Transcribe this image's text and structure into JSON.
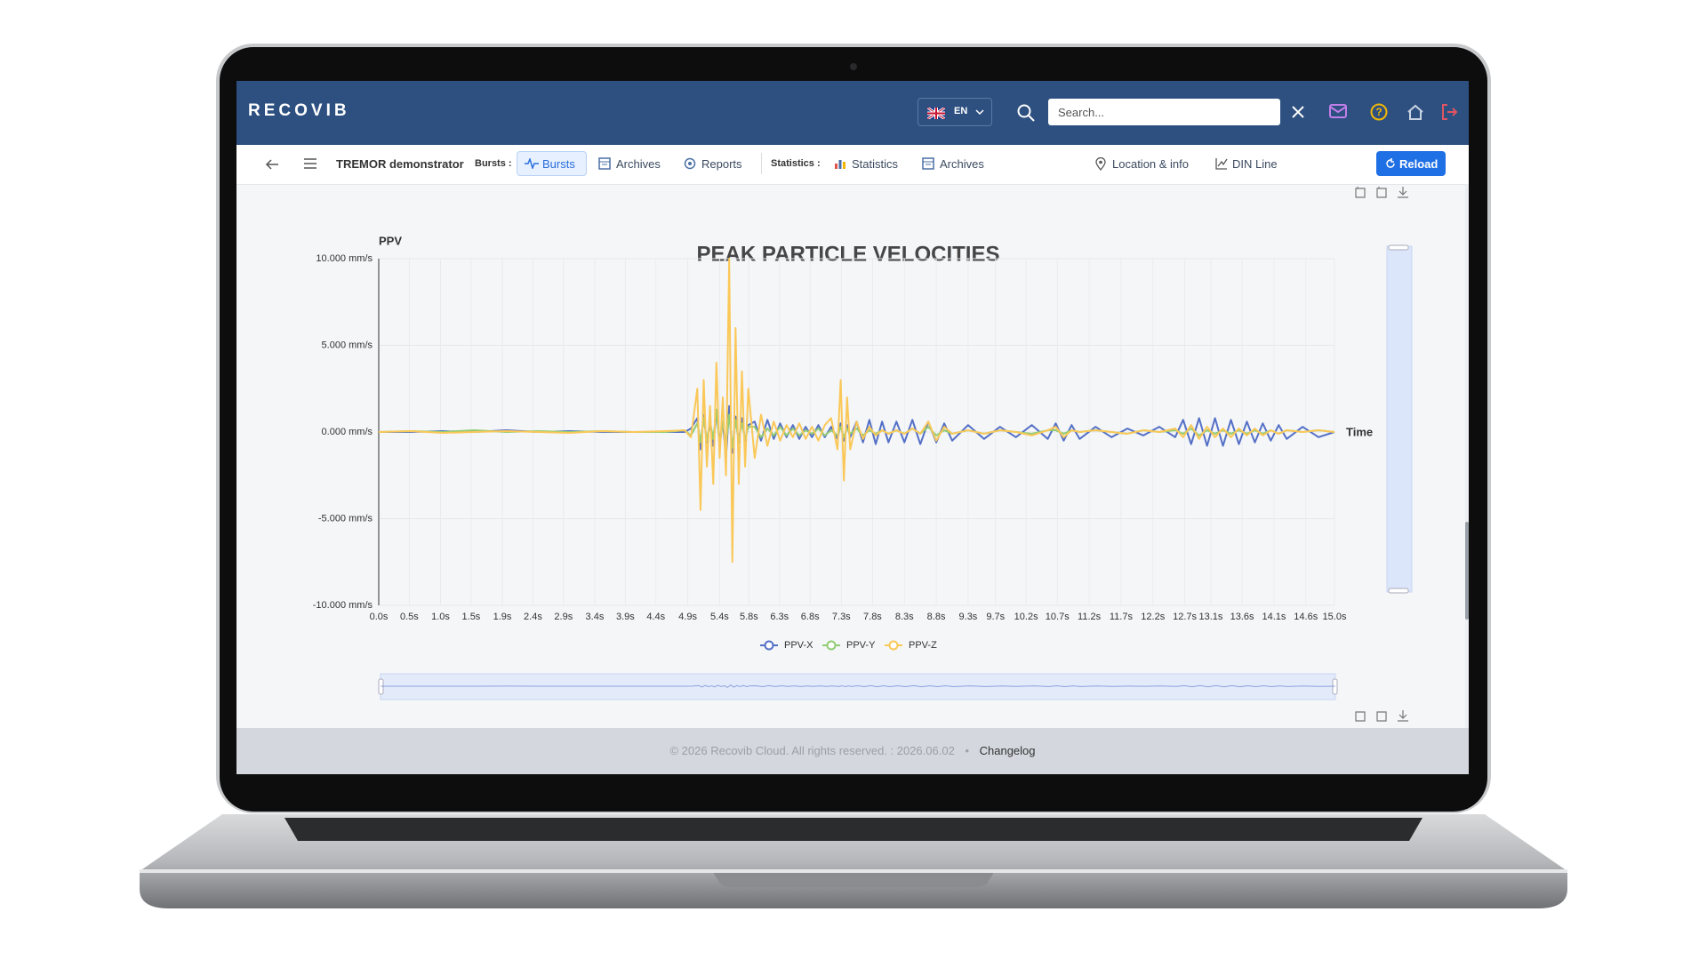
{
  "ui": {
    "logo": "RECOVIB",
    "language": "EN",
    "search_placeholder": "Search...",
    "nav": {
      "project": "TREMOR demonstrator",
      "bursts_label": "Bursts :",
      "bursts": "Bursts",
      "archives": "Archives",
      "reports": "Reports",
      "statistics_label": "Statistics :",
      "statistics": "Statistics",
      "archives_2": "Archives",
      "location": "Location & info",
      "din_line": "DIN Line",
      "reload": "Reload"
    },
    "footer": {
      "copyright": "© 2026 Recovib Cloud. All rights reserved. : 2026.06.02",
      "separator": "•",
      "changelog": "Changelog"
    }
  },
  "chart_data": {
    "type": "line",
    "title": "PEAK PARTICLE VELOCITIES",
    "y_label": "PPV",
    "x_label": "Time",
    "x": [
      0,
      0.5,
      1,
      1.5,
      2,
      2.5,
      3,
      3.5,
      4,
      4.5,
      4.8,
      4.9,
      5.0,
      5.05,
      5.1,
      5.15,
      5.2,
      5.25,
      5.3,
      5.35,
      5.4,
      5.45,
      5.5,
      5.55,
      5.6,
      5.65,
      5.7,
      5.75,
      5.8,
      5.9,
      6.0,
      6.1,
      6.2,
      6.3,
      6.4,
      6.5,
      6.6,
      6.7,
      6.8,
      6.9,
      7.0,
      7.1,
      7.2,
      7.25,
      7.3,
      7.35,
      7.4,
      7.5,
      7.6,
      7.7,
      7.8,
      7.9,
      8.0,
      8.125,
      8.25,
      8.375,
      8.5,
      8.625,
      8.75,
      8.875,
      9.0,
      9.25,
      9.5,
      9.75,
      10,
      10.25,
      10.5,
      10.625,
      10.75,
      10.875,
      11,
      11.25,
      11.5,
      11.75,
      12,
      12.25,
      12.5,
      12.625,
      12.75,
      12.875,
      13,
      13.125,
      13.25,
      13.375,
      13.5,
      13.625,
      13.75,
      13.875,
      14,
      14.125,
      14.25,
      14.5,
      14.75,
      15
    ],
    "xlim": [
      0,
      15
    ],
    "xticks": [
      {
        "value": 0,
        "label": "0.0s"
      },
      {
        "value": 0.48,
        "label": "0.5s"
      },
      {
        "value": 0.97,
        "label": "1.0s"
      },
      {
        "value": 1.45,
        "label": "1.5s"
      },
      {
        "value": 1.94,
        "label": "1.9s"
      },
      {
        "value": 2.42,
        "label": "2.4s"
      },
      {
        "value": 2.9,
        "label": "2.9s"
      },
      {
        "value": 3.39,
        "label": "3.4s"
      },
      {
        "value": 3.87,
        "label": "3.9s"
      },
      {
        "value": 4.35,
        "label": "4.4s"
      },
      {
        "value": 4.85,
        "label": "4.9s"
      },
      {
        "value": 5.35,
        "label": "5.4s"
      },
      {
        "value": 5.81,
        "label": "5.8s"
      },
      {
        "value": 6.29,
        "label": "6.3s"
      },
      {
        "value": 6.77,
        "label": "6.8s"
      },
      {
        "value": 7.26,
        "label": "7.3s"
      },
      {
        "value": 7.75,
        "label": "7.8s"
      },
      {
        "value": 8.25,
        "label": "8.3s"
      },
      {
        "value": 8.75,
        "label": "8.8s"
      },
      {
        "value": 9.25,
        "label": "9.3s"
      },
      {
        "value": 9.68,
        "label": "9.7s"
      },
      {
        "value": 10.16,
        "label": "10.2s"
      },
      {
        "value": 10.65,
        "label": "10.7s"
      },
      {
        "value": 11.15,
        "label": "11.2s"
      },
      {
        "value": 11.65,
        "label": "11.7s"
      },
      {
        "value": 12.15,
        "label": "12.2s"
      },
      {
        "value": 12.65,
        "label": "12.7s"
      },
      {
        "value": 13.06,
        "label": "13.1s"
      },
      {
        "value": 13.55,
        "label": "13.6s"
      },
      {
        "value": 14.05,
        "label": "14.1s"
      },
      {
        "value": 14.55,
        "label": "14.6s"
      },
      {
        "value": 15,
        "label": "15.0s"
      }
    ],
    "ylim": [
      -10,
      10
    ],
    "yticks": [
      {
        "value": -10,
        "label": "-10.000 mm/s"
      },
      {
        "value": -5,
        "label": "-5.000 mm/s"
      },
      {
        "value": 0,
        "label": "0.000 mm/s"
      },
      {
        "value": 5,
        "label": "5.000 mm/s"
      },
      {
        "value": 10,
        "label": "10.000 mm/s"
      }
    ],
    "grid": true,
    "legend": "bottom",
    "series": [
      {
        "name": "PPV-X",
        "color": "#5470c6",
        "values": [
          0,
          0,
          0.05,
          0,
          0.1,
          0,
          0.05,
          0,
          0,
          0,
          0,
          0.2,
          0.8,
          -1,
          1,
          -0.6,
          0.5,
          -0.8,
          1.2,
          -0.5,
          0.6,
          -1.5,
          1.5,
          -1.2,
          0.9,
          -0.6,
          0.8,
          -0.5,
          0.4,
          0.6,
          -0.5,
          0.7,
          -0.4,
          0.5,
          -0.3,
          0.4,
          -0.4,
          0.3,
          -0.3,
          0.4,
          -0.3,
          0.3,
          -0.4,
          0.5,
          -0.5,
          0.4,
          -0.3,
          0.6,
          -0.6,
          0.7,
          -0.7,
          0.6,
          -0.6,
          0.6,
          -0.6,
          0.7,
          -0.7,
          0.6,
          -0.6,
          0.5,
          -0.5,
          0.4,
          -0.4,
          0.3,
          -0.3,
          0.4,
          -0.4,
          0.5,
          -0.5,
          0.4,
          -0.4,
          0.3,
          -0.3,
          0.2,
          -0.2,
          0.3,
          -0.3,
          0.7,
          -0.7,
          0.8,
          -0.8,
          0.8,
          -0.8,
          0.7,
          -0.7,
          0.6,
          -0.6,
          0.5,
          -0.5,
          0.4,
          -0.4,
          0.3,
          -0.3,
          0
        ]
      },
      {
        "name": "PPV-Y",
        "color": "#91cc75",
        "values": [
          0,
          0.05,
          0,
          0.1,
          0,
          0.05,
          0,
          0.05,
          0,
          0,
          0.1,
          -0.2,
          0.5,
          -0.6,
          0.8,
          -0.5,
          0.6,
          -0.4,
          1.3,
          -0.8,
          0.6,
          -0.7,
          1,
          -0.9,
          0.7,
          -0.5,
          0.5,
          -0.4,
          0.3,
          0.3,
          -0.3,
          0.2,
          -0.2,
          0.3,
          -0.2,
          0.2,
          -0.2,
          0.1,
          -0.1,
          0.2,
          -0.2,
          0.1,
          -0.2,
          0.3,
          -0.3,
          0.2,
          -0.1,
          0.2,
          -0.2,
          0.1,
          -0.1,
          0.1,
          -0.1,
          0.1,
          -0.1,
          0.2,
          -0.1,
          0.3,
          -0.2,
          0.1,
          -0.1,
          0.1,
          -0.1,
          0.1,
          0,
          -0.1,
          0.1,
          0.1,
          -0.1,
          0.1,
          0,
          0.1,
          0,
          -0.1,
          0.1,
          0,
          0.1,
          -0.1,
          0.2,
          -0.2,
          0.1,
          -0.1,
          0.1,
          -0.1,
          0.1,
          -0.1,
          0.1,
          -0.1,
          0.1,
          -0.1,
          0.1,
          0,
          0.1,
          0
        ]
      },
      {
        "name": "PPV-Z",
        "color": "#fac858",
        "values": [
          0,
          0.05,
          -0.05,
          0,
          0.05,
          0,
          -0.05,
          0.05,
          0,
          0.05,
          0.1,
          -0.3,
          2.5,
          -4.5,
          3,
          -2,
          1.5,
          -3,
          4,
          -1.5,
          2,
          -2.5,
          10,
          -7.5,
          6,
          -3,
          3.5,
          -2,
          2.5,
          -1.5,
          1,
          -0.8,
          0.6,
          -0.5,
          0.4,
          -0.3,
          0.5,
          -0.4,
          0.3,
          -0.5,
          0.4,
          0.8,
          -1,
          3,
          -2.8,
          2,
          -1,
          0.6,
          -0.4,
          0.3,
          -0.2,
          0.1,
          -0.1,
          0.1,
          -0.1,
          0.2,
          -0.1,
          0.6,
          -0.5,
          0.3,
          -0.1,
          0.1,
          -0.1,
          0.1,
          0,
          -0.2,
          0.1,
          0.3,
          -0.3,
          0.1,
          0,
          0.1,
          0,
          -0.1,
          0.1,
          0,
          0.2,
          -0.3,
          0.4,
          -0.4,
          0.3,
          -0.3,
          0.2,
          -0.3,
          0.2,
          -0.2,
          0.2,
          -0.2,
          0.1,
          -0.1,
          0.1,
          0,
          0.1,
          0
        ]
      }
    ]
  }
}
